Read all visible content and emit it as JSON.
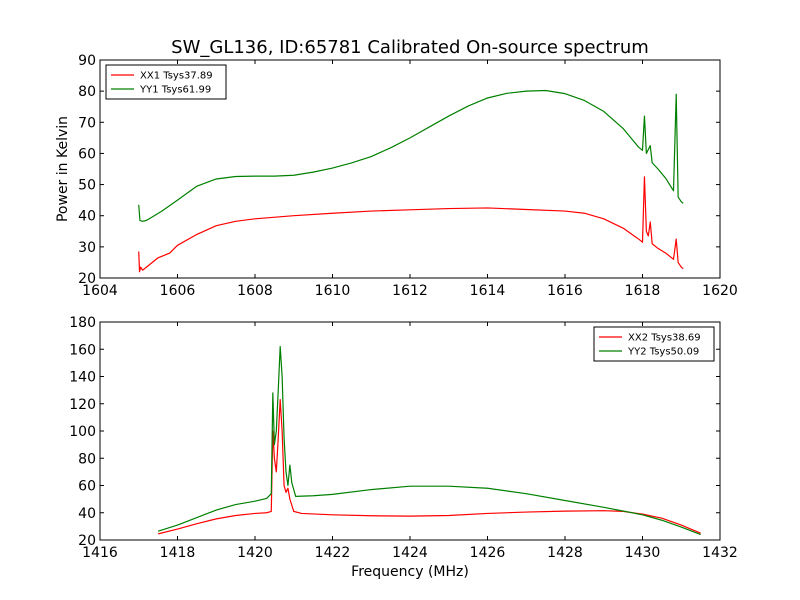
{
  "chart_data": [
    {
      "type": "line",
      "title": "SW_GL136, ID:65781 Calibrated On-source spectrum",
      "xlabel": "",
      "ylabel": "Power in Kelvin",
      "xlim": [
        1604,
        1620
      ],
      "ylim": [
        20,
        90
      ],
      "xticks": [
        "1604",
        "1606",
        "1608",
        "1610",
        "1612",
        "1614",
        "1616",
        "1618",
        "1620"
      ],
      "yticks": [
        "20",
        "30",
        "40",
        "50",
        "60",
        "70",
        "80",
        "90"
      ],
      "grid": false,
      "legend_position": "upper-left",
      "series": [
        {
          "name": "XX1 Tsys37.89",
          "color": "#ff0000",
          "points": [
            [
              1605.0,
              28.5
            ],
            [
              1605.02,
              22.0
            ],
            [
              1605.05,
              23.5
            ],
            [
              1605.1,
              22.5
            ],
            [
              1605.2,
              23.5
            ],
            [
              1605.3,
              24.5
            ],
            [
              1605.5,
              26.5
            ],
            [
              1605.8,
              28.0
            ],
            [
              1606.0,
              30.5
            ],
            [
              1606.5,
              34.0
            ],
            [
              1607.0,
              36.8
            ],
            [
              1607.5,
              38.2
            ],
            [
              1608.0,
              39.0
            ],
            [
              1609.0,
              40.0
            ],
            [
              1610.0,
              40.8
            ],
            [
              1611.0,
              41.5
            ],
            [
              1612.0,
              41.9
            ],
            [
              1613.0,
              42.3
            ],
            [
              1614.0,
              42.5
            ],
            [
              1615.0,
              42.0
            ],
            [
              1616.0,
              41.5
            ],
            [
              1616.5,
              40.8
            ],
            [
              1617.0,
              39.0
            ],
            [
              1617.5,
              36.0
            ],
            [
              1617.9,
              32.5
            ],
            [
              1618.0,
              31.5
            ],
            [
              1618.05,
              52.5
            ],
            [
              1618.1,
              35.0
            ],
            [
              1618.15,
              33.5
            ],
            [
              1618.2,
              38.0
            ],
            [
              1618.25,
              31.0
            ],
            [
              1618.4,
              29.5
            ],
            [
              1618.6,
              28.0
            ],
            [
              1618.8,
              26.0
            ],
            [
              1618.87,
              32.5
            ],
            [
              1618.92,
              25.0
            ],
            [
              1619.0,
              23.5
            ],
            [
              1619.05,
              23.0
            ]
          ]
        },
        {
          "name": "YY1 Tsys61.99",
          "color": "#008000",
          "points": [
            [
              1605.0,
              43.5
            ],
            [
              1605.03,
              38.5
            ],
            [
              1605.1,
              38.2
            ],
            [
              1605.2,
              38.5
            ],
            [
              1605.4,
              40.0
            ],
            [
              1605.6,
              41.5
            ],
            [
              1606.0,
              45.0
            ],
            [
              1606.5,
              49.5
            ],
            [
              1607.0,
              51.8
            ],
            [
              1607.5,
              52.6
            ],
            [
              1608.0,
              52.7
            ],
            [
              1608.5,
              52.7
            ],
            [
              1609.0,
              53.0
            ],
            [
              1609.5,
              54.0
            ],
            [
              1610.0,
              55.3
            ],
            [
              1610.5,
              57.0
            ],
            [
              1611.0,
              59.0
            ],
            [
              1611.5,
              61.8
            ],
            [
              1612.0,
              65.0
            ],
            [
              1612.5,
              68.5
            ],
            [
              1613.0,
              72.0
            ],
            [
              1613.5,
              75.2
            ],
            [
              1614.0,
              77.8
            ],
            [
              1614.5,
              79.3
            ],
            [
              1615.0,
              80.0
            ],
            [
              1615.5,
              80.2
            ],
            [
              1616.0,
              79.2
            ],
            [
              1616.5,
              77.0
            ],
            [
              1617.0,
              73.5
            ],
            [
              1617.5,
              68.0
            ],
            [
              1617.9,
              62.0
            ],
            [
              1618.0,
              61.0
            ],
            [
              1618.05,
              72.0
            ],
            [
              1618.1,
              60.0
            ],
            [
              1618.2,
              62.5
            ],
            [
              1618.25,
              57.0
            ],
            [
              1618.4,
              55.0
            ],
            [
              1618.6,
              52.0
            ],
            [
              1618.8,
              48.0
            ],
            [
              1618.87,
              79.0
            ],
            [
              1618.92,
              46.0
            ],
            [
              1619.0,
              44.5
            ],
            [
              1619.05,
              44.0
            ]
          ]
        }
      ]
    },
    {
      "type": "line",
      "title": "",
      "xlabel": "Frequency (MHz)",
      "ylabel": "",
      "xlim": [
        1416,
        1432
      ],
      "ylim": [
        20,
        180
      ],
      "xticks": [
        "1416",
        "1418",
        "1420",
        "1422",
        "1424",
        "1426",
        "1428",
        "1430",
        "1432"
      ],
      "yticks": [
        "20",
        "40",
        "60",
        "80",
        "100",
        "120",
        "140",
        "160",
        "180"
      ],
      "grid": false,
      "legend_position": "upper-right",
      "series": [
        {
          "name": "XX2 Tsys38.69",
          "color": "#ff0000",
          "points": [
            [
              1417.5,
              24.5
            ],
            [
              1418.0,
              28.0
            ],
            [
              1418.5,
              32.0
            ],
            [
              1419.0,
              35.5
            ],
            [
              1419.5,
              38.0
            ],
            [
              1420.0,
              39.5
            ],
            [
              1420.3,
              40.0
            ],
            [
              1420.42,
              41.0
            ],
            [
              1420.46,
              100.0
            ],
            [
              1420.5,
              80.0
            ],
            [
              1420.55,
              70.0
            ],
            [
              1420.6,
              95.0
            ],
            [
              1420.65,
              123.0
            ],
            [
              1420.7,
              100.0
            ],
            [
              1420.75,
              60.0
            ],
            [
              1420.8,
              55.0
            ],
            [
              1420.85,
              58.0
            ],
            [
              1420.9,
              50.0
            ],
            [
              1421.0,
              41.0
            ],
            [
              1421.2,
              39.5
            ],
            [
              1422.0,
              38.5
            ],
            [
              1423.0,
              37.8
            ],
            [
              1424.0,
              37.5
            ],
            [
              1425.0,
              38.0
            ],
            [
              1426.0,
              39.5
            ],
            [
              1427.0,
              40.5
            ],
            [
              1428.0,
              41.2
            ],
            [
              1429.0,
              41.5
            ],
            [
              1429.5,
              41.0
            ],
            [
              1430.0,
              39.0
            ],
            [
              1430.5,
              36.0
            ],
            [
              1431.0,
              31.0
            ],
            [
              1431.5,
              25.0
            ]
          ]
        },
        {
          "name": "YY2 Tsys50.09",
          "color": "#008000",
          "points": [
            [
              1417.5,
              26.5
            ],
            [
              1418.0,
              31.0
            ],
            [
              1418.5,
              36.5
            ],
            [
              1419.0,
              42.0
            ],
            [
              1419.5,
              46.0
            ],
            [
              1420.0,
              48.5
            ],
            [
              1420.3,
              50.5
            ],
            [
              1420.42,
              54.0
            ],
            [
              1420.46,
              128.0
            ],
            [
              1420.5,
              90.0
            ],
            [
              1420.55,
              100.0
            ],
            [
              1420.6,
              130.0
            ],
            [
              1420.65,
              162.0
            ],
            [
              1420.7,
              140.0
            ],
            [
              1420.75,
              95.0
            ],
            [
              1420.8,
              70.0
            ],
            [
              1420.85,
              60.0
            ],
            [
              1420.9,
              75.0
            ],
            [
              1420.95,
              62.0
            ],
            [
              1421.05,
              52.0
            ],
            [
              1421.5,
              52.5
            ],
            [
              1422.0,
              53.5
            ],
            [
              1423.0,
              57.0
            ],
            [
              1424.0,
              59.5
            ],
            [
              1425.0,
              59.5
            ],
            [
              1426.0,
              58.0
            ],
            [
              1427.0,
              54.0
            ],
            [
              1428.0,
              49.0
            ],
            [
              1429.0,
              44.0
            ],
            [
              1430.0,
              38.5
            ],
            [
              1430.5,
              34.5
            ],
            [
              1431.0,
              29.5
            ],
            [
              1431.5,
              24.0
            ]
          ]
        }
      ]
    }
  ]
}
